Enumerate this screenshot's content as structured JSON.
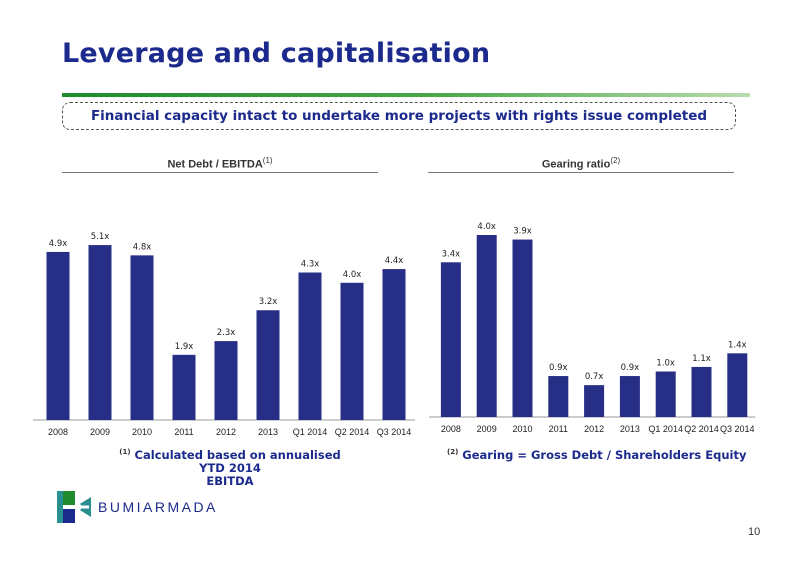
{
  "slide": {
    "title": "Leverage and capitalisation",
    "banner": "Financial capacity intact to undertake more projects with rights issue completed",
    "page_number": "10"
  },
  "brand": {
    "name": "BUMIARMADA",
    "colors": {
      "navy": "#1b2a8c",
      "green": "#1f8a2e",
      "teal": "#2a8f8f"
    }
  },
  "notes": {
    "left_marker": "(1)",
    "left_text_line1": "Calculated based on annualised YTD 2014",
    "left_text_line2": "EBITDA",
    "right_marker": "(2)",
    "right_text": "Gearing = Gross Debt / Shareholders Equity"
  },
  "chart_data": [
    {
      "type": "bar",
      "title": "Net Debt / EBITDA",
      "title_superscript": "(1)",
      "categories": [
        "2008",
        "2009",
        "2010",
        "2011",
        "2012",
        "2013",
        "Q1 2014",
        "Q2 2014",
        "Q3 2014"
      ],
      "values": [
        4.9,
        5.1,
        4.8,
        1.9,
        2.3,
        3.2,
        4.3,
        4.0,
        4.4
      ],
      "data_labels": [
        "4.9x",
        "5.1x",
        "4.8x",
        "1.9x",
        "2.3x",
        "3.2x",
        "4.3x",
        "4.0x",
        "4.4x"
      ],
      "bar_color": "#262e86",
      "xlabel": "",
      "ylabel": "",
      "grid": false
    },
    {
      "type": "bar",
      "title": "Gearing ratio",
      "title_superscript": "(2)",
      "categories": [
        "2008",
        "2009",
        "2010",
        "2011",
        "2012",
        "2013",
        "Q1 2014",
        "Q2 2014",
        "Q3 2014"
      ],
      "values": [
        3.4,
        4.0,
        3.9,
        0.9,
        0.7,
        0.9,
        1.0,
        1.1,
        1.4
      ],
      "data_labels": [
        "3.4x",
        "4.0x",
        "3.9x",
        "0.9x",
        "0.7x",
        "0.9x",
        "1.0x",
        "1.1x",
        "1.4x"
      ],
      "bar_color": "#262e86",
      "xlabel": "",
      "ylabel": "",
      "grid": false
    }
  ]
}
